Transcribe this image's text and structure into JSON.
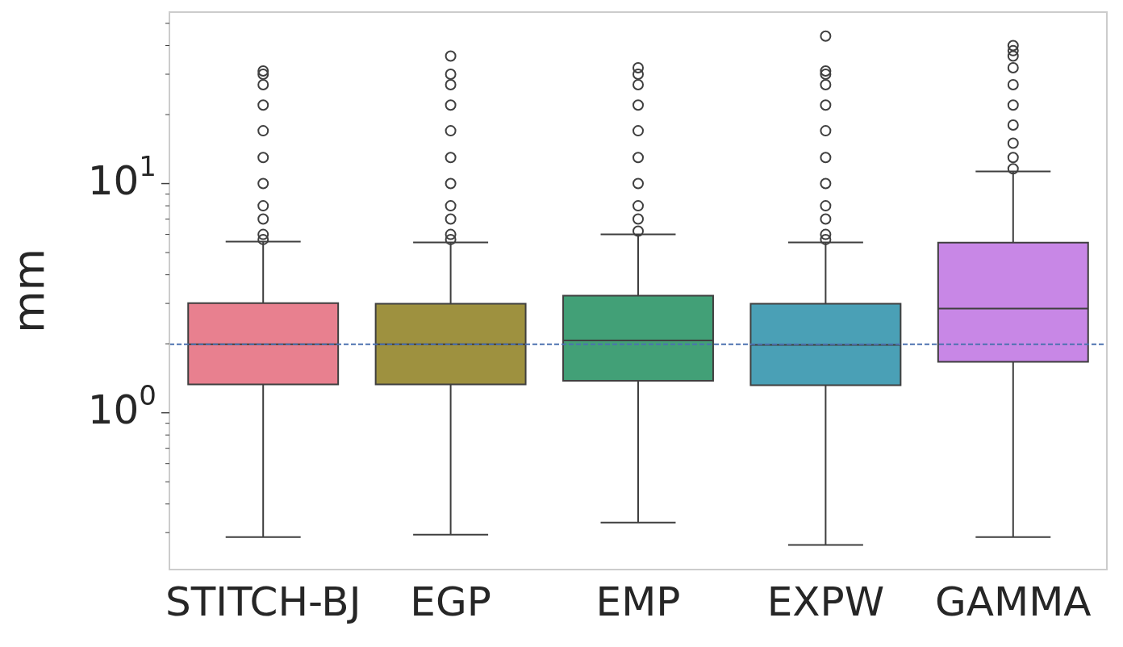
{
  "chart_data": {
    "type": "box",
    "ylabel": "mm",
    "log": "y",
    "grid": false,
    "categories": [
      "STITCH-BJ",
      "EGP",
      "EMP",
      "EXPW",
      "GAMMA"
    ],
    "colors": [
      "#e8808f",
      "#9e913f",
      "#42a077",
      "#4aa0b6",
      "#c887e6"
    ],
    "boxes": [
      {
        "low": 0.287,
        "q1": 1.33,
        "median": 1.99,
        "q3": 3.01,
        "high": 5.58,
        "outliers": [
          5.7,
          6,
          7,
          8,
          10,
          13,
          17,
          22,
          27,
          30,
          31
        ]
      },
      {
        "low": 0.294,
        "q1": 1.33,
        "median": 1.99,
        "q3": 2.99,
        "high": 5.54,
        "outliers": [
          5.7,
          6,
          7,
          8,
          10,
          13,
          17,
          22,
          27,
          30,
          36
        ]
      },
      {
        "low": 0.332,
        "q1": 1.38,
        "median": 2.07,
        "q3": 3.24,
        "high": 6.0,
        "outliers": [
          6.2,
          7,
          8,
          10,
          13,
          17,
          22,
          27,
          30,
          32
        ]
      },
      {
        "low": 0.265,
        "q1": 1.32,
        "median": 1.98,
        "q3": 2.99,
        "high": 5.54,
        "outliers": [
          5.7,
          6,
          7,
          8,
          10,
          13,
          17,
          22,
          27,
          30,
          31,
          44
        ]
      },
      {
        "low": 0.287,
        "q1": 1.67,
        "median": 2.85,
        "q3": 5.53,
        "high": 11.3,
        "outliers": [
          11.6,
          13,
          15,
          18,
          22,
          27,
          32,
          36,
          38,
          40
        ]
      }
    ],
    "ylim": [
      0.207,
      56
    ],
    "yticks": [
      {
        "value": 0.3,
        "label": null
      },
      {
        "value": 0.4,
        "label": null
      },
      {
        "value": 0.5,
        "label": null
      },
      {
        "value": 0.6,
        "label": null
      },
      {
        "value": 0.7,
        "label": null
      },
      {
        "value": 0.8,
        "label": null
      },
      {
        "value": 0.9,
        "label": null
      },
      {
        "value": 1,
        "label": "10$^{0}$"
      },
      {
        "value": 2,
        "label": null
      },
      {
        "value": 3,
        "label": null
      },
      {
        "value": 4,
        "label": null
      },
      {
        "value": 5,
        "label": null
      },
      {
        "value": 6,
        "label": null
      },
      {
        "value": 7,
        "label": null
      },
      {
        "value": 8,
        "label": null
      },
      {
        "value": 9,
        "label": null
      },
      {
        "value": 10,
        "label": "10$^{1}$"
      },
      {
        "value": 20,
        "label": null
      },
      {
        "value": 30,
        "label": null
      },
      {
        "value": 40,
        "label": null
      },
      {
        "value": 50,
        "label": null
      }
    ],
    "ref_lines": [
      {
        "axis": "y",
        "value": 1.99,
        "color": "#4c72b0",
        "line_style": "dashed"
      }
    ]
  }
}
